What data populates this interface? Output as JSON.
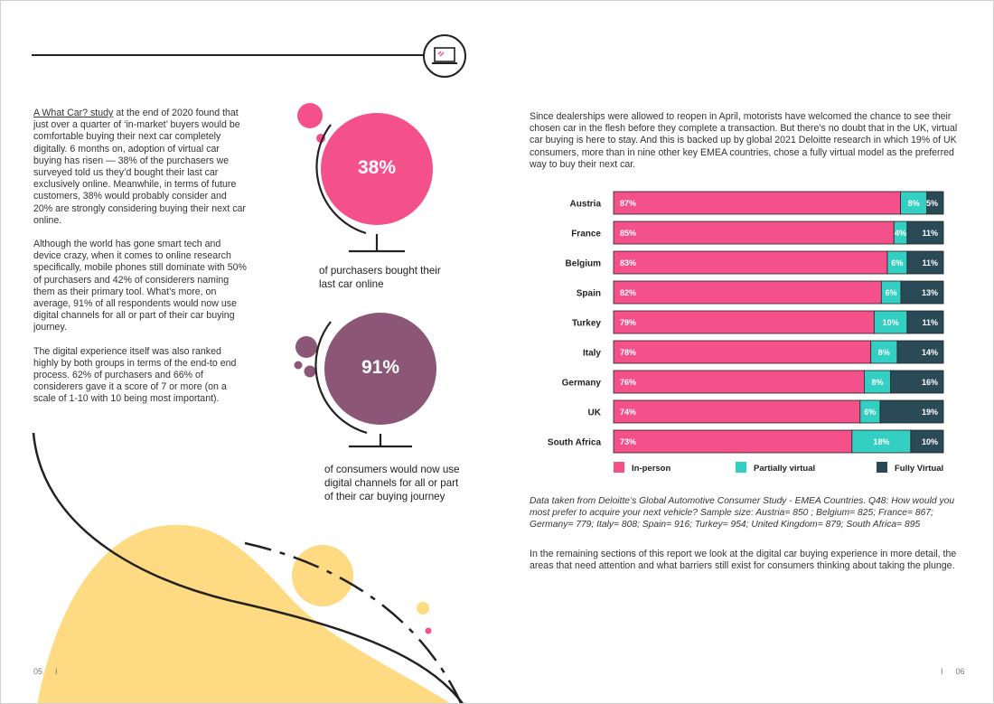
{
  "left_page": {
    "paragraphs": [
      {
        "link": "A What Car? study",
        "text": " at the end of 2020 found that just over a quarter of ‘in-market’ buyers would be comfortable buying their next car completely digitally. 6 months on, adoption of virtual car buying has risen — 38% of the purchasers we surveyed told us they’d bought their last car exclusively online. Meanwhile, in terms of future customers, 38% would probably consider and 20% are strongly considering buying their next car online."
      },
      {
        "text": "Although the world has gone smart tech and device crazy, when it comes to online research specifically, mobile phones still dominate with 50% of purchasers and 42% of considerers naming them as their primary tool. What’s more, on average, 91% of all respondents would now use digital channels for all or part of their car buying journey."
      },
      {
        "text": "The digital experience itself was also ranked highly by both groups in terms of the end-to end process. 62% of purchasers and 66% of considerers gave it a score of 7 or more (on a scale of 1-10 with 10 being most important)."
      }
    ],
    "stats": [
      {
        "value": "38%",
        "caption": "of purchasers bought their last car online",
        "color": "#f4508a"
      },
      {
        "value": "91%",
        "caption": "of consumers would now use digital channels for all or part of their car buying journey",
        "color": "#8c5677"
      }
    ],
    "page_number": "05",
    "separator": "I"
  },
  "right_page": {
    "intro": "Since dealerships were allowed to reopen in April, motorists have welcomed the chance to see their chosen car in the flesh before they complete a transaction. But there’s no doubt that in the UK, virtual car buying is here to stay. And this is backed up by global 2021 Deloitte research in which 19% of UK consumers, more than in nine other key EMEA countries, chose a fully virtual model as the preferred way to buy their next car.",
    "note": "Data taken from Deloitte’s Global Automotive Consumer Study - EMEA Countries. Q48: How would you most prefer to acquire your next vehicle? Sample size: Austria= 850 ; Belgium= 825; France= 867; Germany= 779; Italy= 808; Spain= 916; Turkey= 954; United Kingdom= 879; South Africa= 895",
    "outro": "In the remaining sections of this report we look at the digital car buying experience in more detail, the areas that need attention and what barriers still exist for consumers thinking about taking the plunge.",
    "page_number": "06",
    "separator": "I"
  },
  "icons": {
    "header": "laptop-icon"
  },
  "colors": {
    "pink": "#f4508a",
    "teal": "#34cfc3",
    "dark": "#2a4a58",
    "plum": "#8c5677",
    "yellow": "#fedb82"
  },
  "chart_data": {
    "type": "bar",
    "orientation": "horizontal",
    "stacked": true,
    "categories": [
      "Austria",
      "France",
      "Belgium",
      "Spain",
      "Turkey",
      "Italy",
      "Germany",
      "UK",
      "South Africa"
    ],
    "series": [
      {
        "name": "In-person",
        "values": [
          87,
          85,
          83,
          82,
          79,
          78,
          76,
          74,
          73
        ],
        "labels": [
          "87%",
          "85%",
          "83%",
          "82%",
          "79%",
          "78%",
          "76%",
          "74%",
          "73%"
        ],
        "color": "#f4508a"
      },
      {
        "name": "Partially virtual",
        "values": [
          8,
          4,
          6,
          6,
          10,
          8,
          8,
          6,
          18
        ],
        "labels": [
          "8%",
          "4%",
          "6%",
          "6%",
          "10%",
          "8%",
          "8%",
          "6%",
          "18%"
        ],
        "color": "#34cfc3"
      },
      {
        "name": "Fully Virtual",
        "values": [
          5,
          11,
          11,
          13,
          11,
          14,
          16,
          19,
          10
        ],
        "labels": [
          "5%",
          "11%",
          "11%",
          "13%",
          "11%",
          "14%",
          "16%",
          "19%",
          "10%"
        ],
        "color": "#2a4a58"
      }
    ],
    "legend_position": "bottom"
  }
}
